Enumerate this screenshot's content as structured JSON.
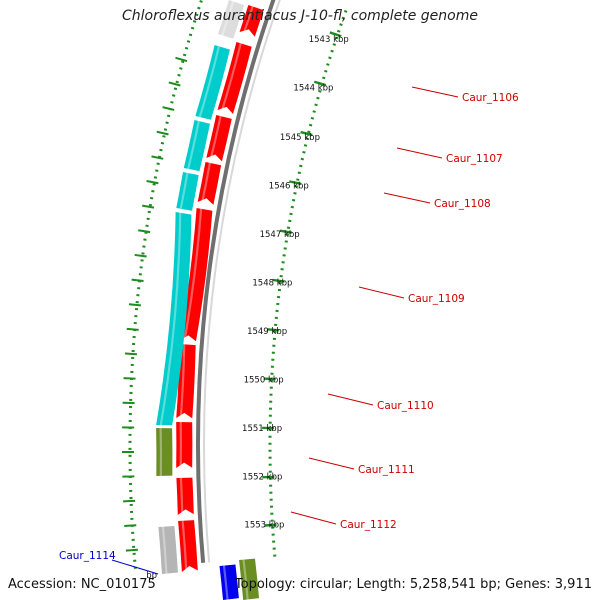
{
  "title": "Chloroflexus aurantiacus J-10-fl, complete genome",
  "footer": {
    "accession": "Accession: NC_010175",
    "topology": "Topology: circular; Length: 5,258,541 bp; Genes: 3,911"
  },
  "colors": {
    "forward_cds": "#ff0000",
    "reverse_cds": "#00cccc",
    "olive_feature": "#6b8e23",
    "grey_feature": "#b5b5b5",
    "blue_feature": "#0000ee",
    "tick_marks": "#1e8c1e",
    "backbone": "#888888",
    "gene_label": "#cc0000",
    "highlight_label": "#0000cc"
  },
  "ticks": [
    {
      "label": "1543 kbp"
    },
    {
      "label": "1544 kbp"
    },
    {
      "label": "1545 kbp"
    },
    {
      "label": "1546 kbp"
    },
    {
      "label": "1547 kbp"
    },
    {
      "label": "1548 kbp"
    },
    {
      "label": "1549 kbp"
    },
    {
      "label": "1550 kbp"
    },
    {
      "label": "1551 kbp"
    },
    {
      "label": "1552 kbp"
    },
    {
      "label": "1553 kbp"
    }
  ],
  "genes": [
    {
      "label": "Caur_1106"
    },
    {
      "label": "Caur_1107"
    },
    {
      "label": "Caur_1108"
    },
    {
      "label": "Caur_1109"
    },
    {
      "label": "Caur_1110"
    },
    {
      "label": "Caur_1111"
    },
    {
      "label": "Caur_1112"
    },
    {
      "label": "Caur_1114"
    }
  ],
  "partial_tick_label": "bp"
}
